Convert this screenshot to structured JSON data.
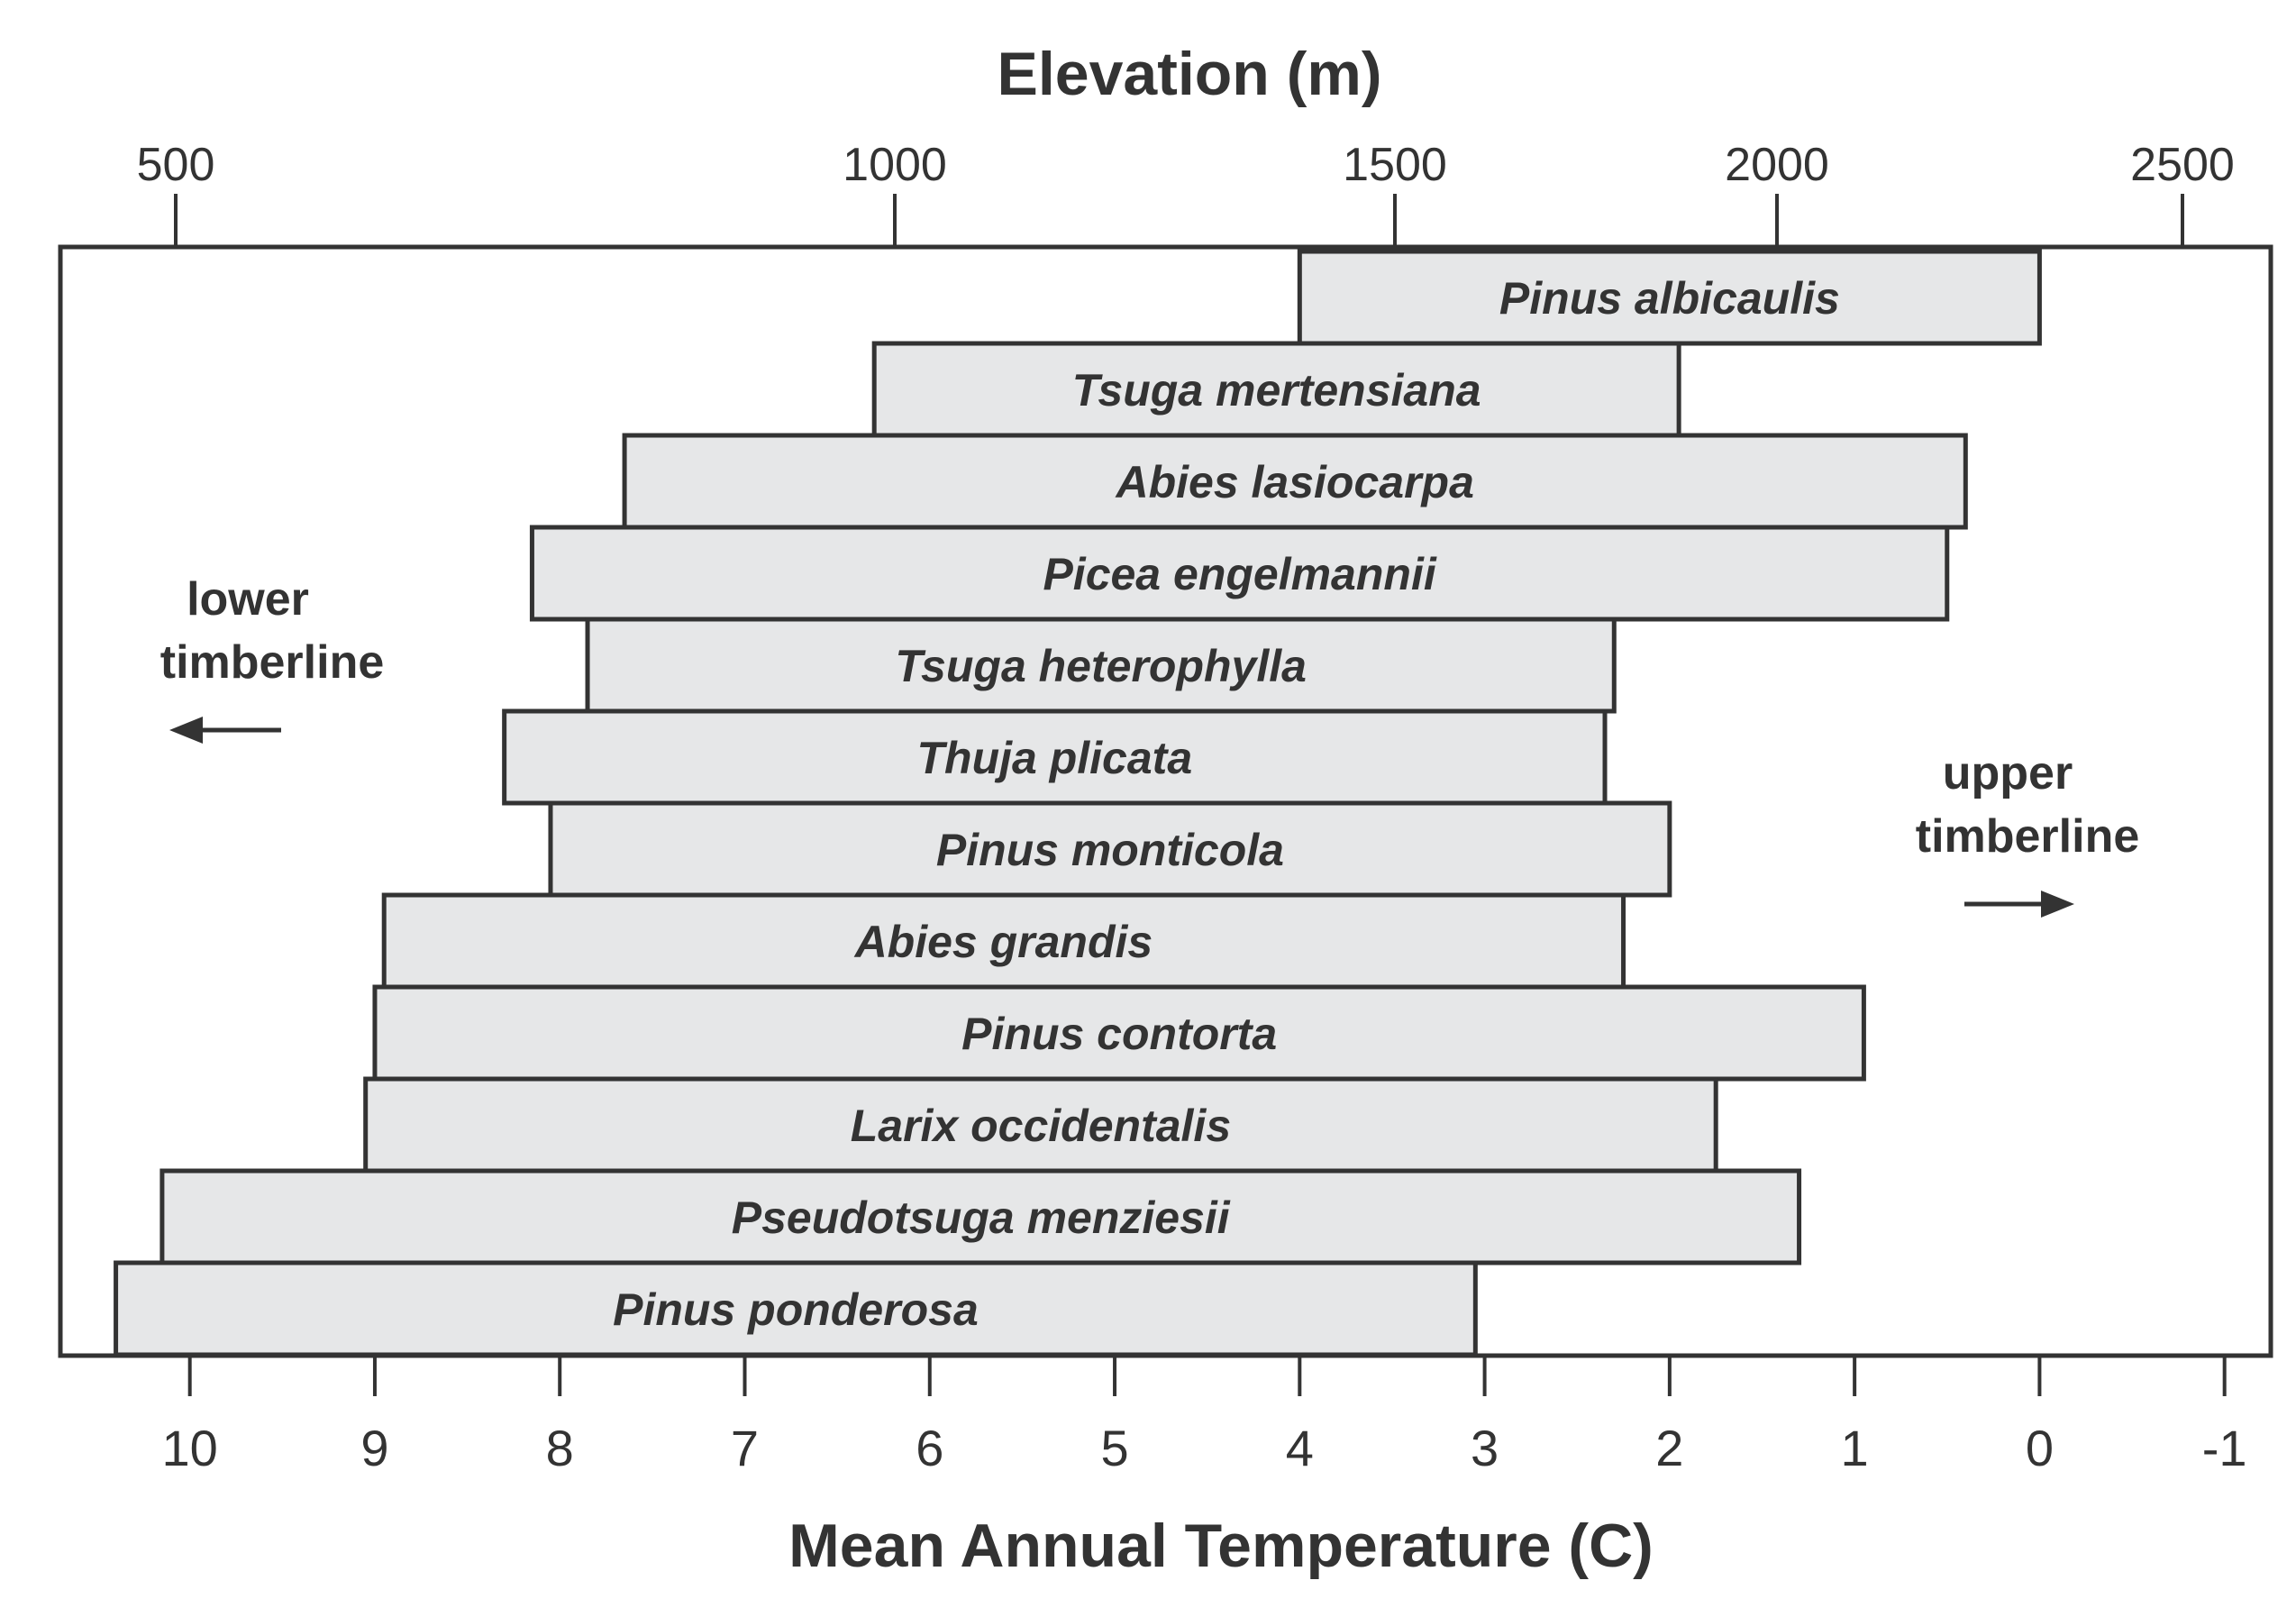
{
  "chart_data": {
    "type": "bar",
    "orientation": "horizontal-range",
    "title": "",
    "top_axis": {
      "label": "Elevation (m)",
      "ticks": [
        "500",
        "1000",
        "1500",
        "2000",
        "2500"
      ]
    },
    "bottom_axis": {
      "label": "Mean Annual Temperature (C)",
      "ticks": [
        10,
        9,
        8,
        7,
        6,
        5,
        4,
        3,
        2,
        1,
        0,
        -1
      ],
      "range": [
        10.7,
        -1.25
      ]
    },
    "series": [
      {
        "name": "Pinus albicaulis",
        "warm_limit": 4.0,
        "cold_limit": 0.0
      },
      {
        "name": "Tsuga mertensiana",
        "warm_limit": 6.3,
        "cold_limit": 1.95
      },
      {
        "name": "Abies lasiocarpa",
        "warm_limit": 7.65,
        "cold_limit": 0.4
      },
      {
        "name": "Picea engelmannii",
        "warm_limit": 8.15,
        "cold_limit": 0.5
      },
      {
        "name": "Tsuga heterophylla",
        "warm_limit": 7.85,
        "cold_limit": 2.3
      },
      {
        "name": "Thuja plicata",
        "warm_limit": 8.3,
        "cold_limit": 2.35
      },
      {
        "name": "Pinus monticola",
        "warm_limit": 8.05,
        "cold_limit": 2.0
      },
      {
        "name": "Abies grandis",
        "warm_limit": 8.95,
        "cold_limit": 2.25
      },
      {
        "name": "Pinus contorta",
        "warm_limit": 9.0,
        "cold_limit": 0.95
      },
      {
        "name": "Larix occidentalis",
        "warm_limit": 9.05,
        "cold_limit": 1.75
      },
      {
        "name": "Pseudotsuga menziesii",
        "warm_limit": 10.15,
        "cold_limit": 1.3
      },
      {
        "name": "Pinus ponderosa",
        "warm_limit": 10.4,
        "cold_limit": 3.05
      }
    ],
    "annotations": {
      "lower": {
        "line1": "lower",
        "line2": "timberline",
        "arrow": "←"
      },
      "upper": {
        "line1": "upper",
        "line2": "timberline",
        "arrow": "→"
      }
    },
    "colors": {
      "bar_fill": "#e6e7e8",
      "ink": "#333333"
    }
  }
}
